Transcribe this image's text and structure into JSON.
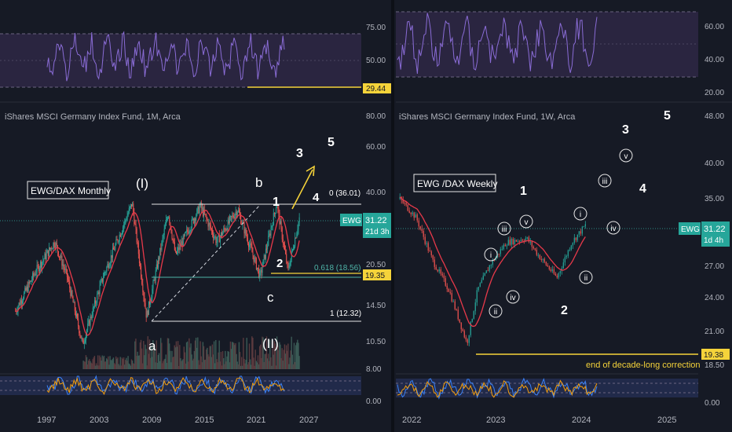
{
  "chart_data": [
    {
      "type": "line",
      "panel": "left-rsi",
      "y_ticks": [
        "75.00",
        "50.00",
        "25.00"
      ],
      "ylim": [
        20,
        95
      ],
      "levels": [
        70,
        50,
        30
      ],
      "marker_label": "29.44",
      "marker_color": "#f5d33a"
    },
    {
      "type": "candlestick",
      "panel": "left-main",
      "title": "iShares MSCI Germany Index Fund, 1M, Arca",
      "label_box": "EWG/DAX Monthly",
      "y_ticks": [
        "80.00",
        "60.00",
        "40.00",
        "20.50",
        "14.50",
        "10.50",
        "8.00"
      ],
      "x_ticks": [
        "1997",
        "2003",
        "2009",
        "2015",
        "2021",
        "2027"
      ],
      "price_badge": {
        "value": "31.22",
        "sub": "21d 3h",
        "symbol": "EWG",
        "color": "#26a69a"
      },
      "level_badge": {
        "value": "19.35",
        "color": "#f5d33a"
      },
      "fib_levels": [
        {
          "label": "0 (36.01)",
          "value": 36.01
        },
        {
          "label": "0.618 (18.56)",
          "value": 18.56
        },
        {
          "label": "1 (12.32)",
          "value": 12.32
        }
      ],
      "wave_labels": [
        "(I)",
        "b",
        "1",
        "2",
        "3",
        "4",
        "5",
        "c",
        "(II)",
        "a"
      ],
      "ylog": true,
      "ylim": [
        7.5,
        90
      ],
      "xlim": [
        1995,
        2030
      ],
      "series": [
        {
          "name": "price",
          "x": [
            1996.5,
            1998.5,
            2000.3,
            2001.5,
            2003.0,
            2005.0,
            2007.8,
            2009.2,
            2011.3,
            2012.0,
            2014.4,
            2016.0,
            2018.0,
            2020.2,
            2021.8,
            2022.9,
            2024.0
          ],
          "values": [
            13,
            19,
            25,
            18,
            9.5,
            18,
            36,
            12.3,
            33,
            22,
            35,
            25,
            34,
            18,
            36,
            19,
            31.2
          ]
        }
      ]
    },
    {
      "type": "line",
      "panel": "right-rsi",
      "y_ticks": [
        "60.00",
        "40.00",
        "20.00"
      ],
      "ylim": [
        18,
        72
      ],
      "levels": [
        70,
        50,
        30
      ]
    },
    {
      "type": "candlestick",
      "panel": "right-main",
      "title": "iShares MSCI Germany Index Fund, 1W, Arca",
      "label_box": "EWG /DAX Weekly",
      "y_ticks": [
        "48.00",
        "40.00",
        "35.00",
        "27.00",
        "24.00",
        "21.00",
        "18.50"
      ],
      "x_ticks": [
        "2022",
        "2023",
        "2024",
        "2025"
      ],
      "price_badge": {
        "value": "31.22",
        "sub": "1d 4h",
        "symbol": "EWG",
        "color": "#26a69a"
      },
      "level_badge": {
        "value": "19.38",
        "color": "#f5d33a"
      },
      "annotation": "end of decade-long correction",
      "wave_labels": [
        "1",
        "2",
        "3",
        "4",
        "5",
        "i",
        "ii",
        "iii",
        "iv",
        "v"
      ],
      "ylog": true,
      "ylim": [
        17.5,
        50
      ],
      "xlim": [
        2021.85,
        2025.55
      ],
      "series": [
        {
          "name": "price",
          "x": [
            2021.9,
            2022.1,
            2022.3,
            2022.5,
            2022.72,
            2022.85,
            2023.0,
            2023.2,
            2023.45,
            2023.6,
            2023.82,
            2024.0,
            2024.18
          ],
          "values": [
            34.5,
            32,
            27,
            24,
            19.4,
            24,
            26.5,
            29,
            29.5,
            27.5,
            25.2,
            29,
            31.2
          ]
        }
      ]
    }
  ]
}
